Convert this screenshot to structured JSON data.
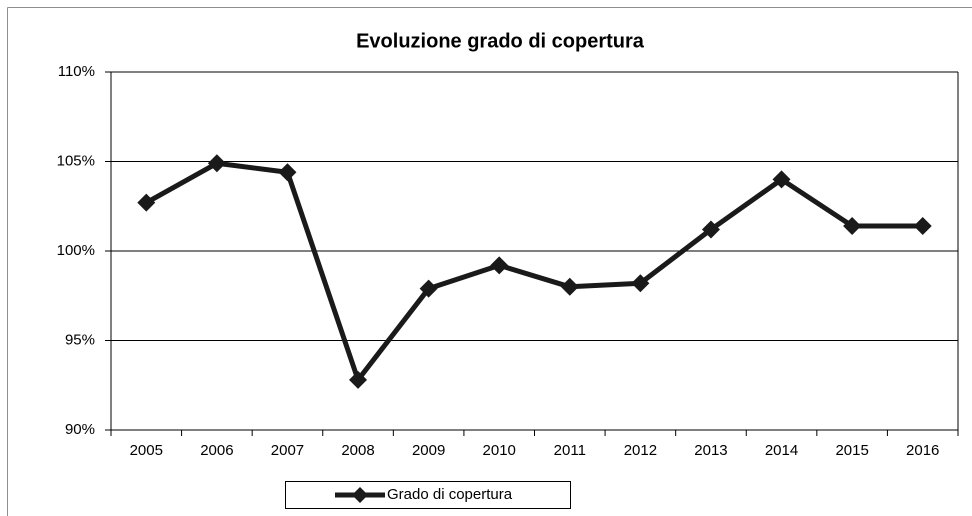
{
  "chart_data": {
    "type": "line",
    "title": "Evoluzione grado di copertura",
    "categories": [
      "2005",
      "2006",
      "2007",
      "2008",
      "2009",
      "2010",
      "2011",
      "2012",
      "2013",
      "2014",
      "2015",
      "2016"
    ],
    "series": [
      {
        "name": "Grado di copertura",
        "color": "#1a1a1a",
        "values": [
          102.7,
          104.9,
          104.4,
          92.8,
          97.9,
          99.2,
          98.0,
          98.2,
          101.2,
          104.0,
          101.4,
          101.4
        ]
      }
    ],
    "ylim": [
      90,
      110
    ],
    "yticks": [
      {
        "value": 90,
        "label": "90%"
      },
      {
        "value": 95,
        "label": "95%"
      },
      {
        "value": 100,
        "label": "100%"
      },
      {
        "value": 105,
        "label": "105%"
      },
      {
        "value": 110,
        "label": "110%"
      }
    ],
    "grid": true,
    "legend": "bottom"
  }
}
